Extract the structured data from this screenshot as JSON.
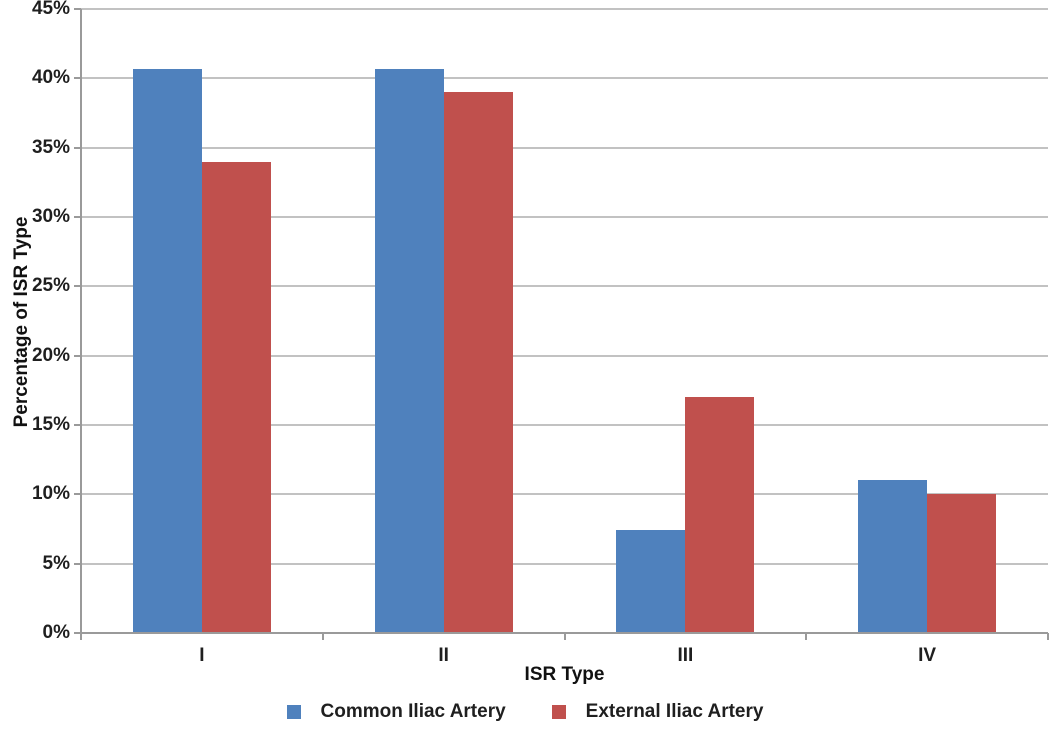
{
  "chart_data": {
    "type": "bar",
    "xlabel": "ISR Type",
    "ylabel": "Percentage of ISR Type",
    "categories": [
      "I",
      "II",
      "III",
      "IV"
    ],
    "series": [
      {
        "name": "Common Iliac Artery",
        "color": "#4f81bd",
        "values": [
          40.7,
          40.7,
          7.4,
          11
        ]
      },
      {
        "name": "External Iliac Artery",
        "color": "#c0504d",
        "values": [
          34,
          39,
          17,
          10
        ]
      }
    ],
    "ylim": [
      0,
      45
    ],
    "ytick_step": 5,
    "ytick_labels": [
      "0%",
      "5%",
      "10%",
      "15%",
      "20%",
      "25%",
      "30%",
      "35%",
      "40%",
      "45%"
    ],
    "grid": true,
    "legend_position": "bottom",
    "colors": {
      "gridline": "#c2c2c2",
      "axis": "#9a9a9a",
      "text": "#1f1f1f"
    }
  }
}
